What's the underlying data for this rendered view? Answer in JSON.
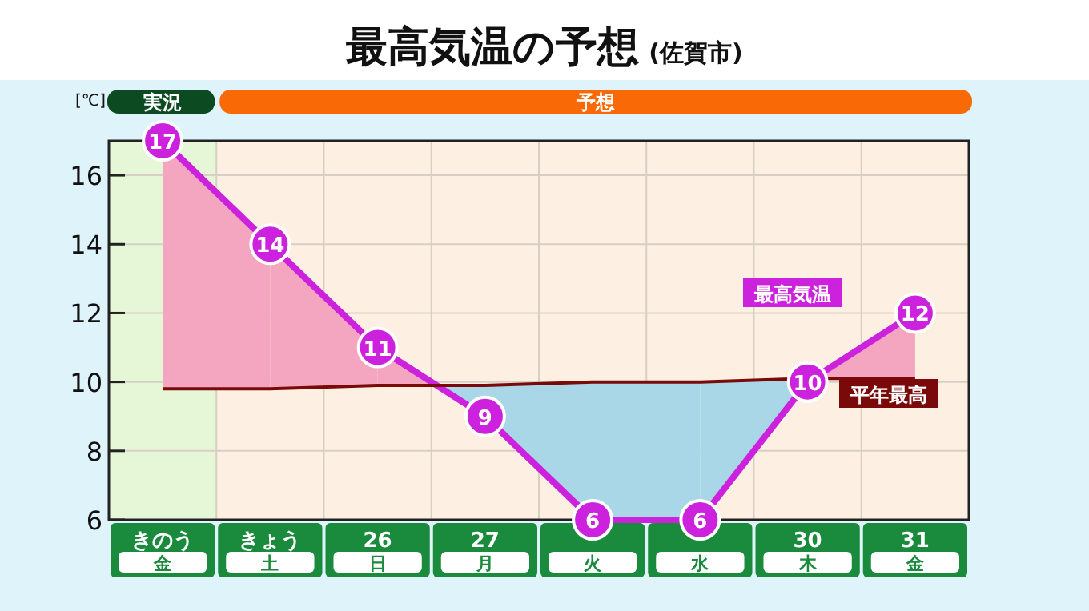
{
  "chart_data": {
    "type": "line",
    "title": "最高気温の予想",
    "subtitle": "(佐賀市)",
    "ylabel": "[℃]",
    "categories": [
      "きのう金",
      "きょう土",
      "26日",
      "27月",
      "火",
      "水",
      "30木",
      "31金"
    ],
    "series": [
      {
        "name": "最高気温",
        "color": "#cc22dd",
        "values": [
          17,
          14,
          11,
          9,
          6,
          6,
          10,
          12
        ],
        "marker": "circle",
        "lower": [
          9.8,
          9.8,
          9.9,
          null,
          null,
          null,
          null,
          10.1
        ],
        "upper": [
          17,
          14,
          11,
          null,
          null,
          null,
          null,
          12
        ],
        "value_labels": [
          "17",
          "14",
          "11",
          "9",
          "6",
          "6",
          "10",
          "12"
        ]
      },
      {
        "name": "平年最高",
        "color": "#7a0a0a",
        "values": [
          9.8,
          9.8,
          9.9,
          9.9,
          10,
          10,
          10.1,
          10.1
        ],
        "marker": "none",
        "lower": [
          null,
          null,
          null,
          9,
          6,
          6,
          10,
          null
        ],
        "upper": [
          null,
          null,
          null,
          9.9,
          10,
          10,
          10.1,
          null
        ]
      }
    ],
    "bands": [
      {
        "axis": "x",
        "from": "きのう金",
        "to": "きのう金",
        "label": "実況",
        "color": "#e6f7d8"
      }
    ],
    "annotations": [
      "予想"
    ],
    "ylim": [
      6,
      17
    ],
    "yticks": [
      6,
      8,
      10,
      12,
      14,
      16
    ],
    "grid": true
  }
}
